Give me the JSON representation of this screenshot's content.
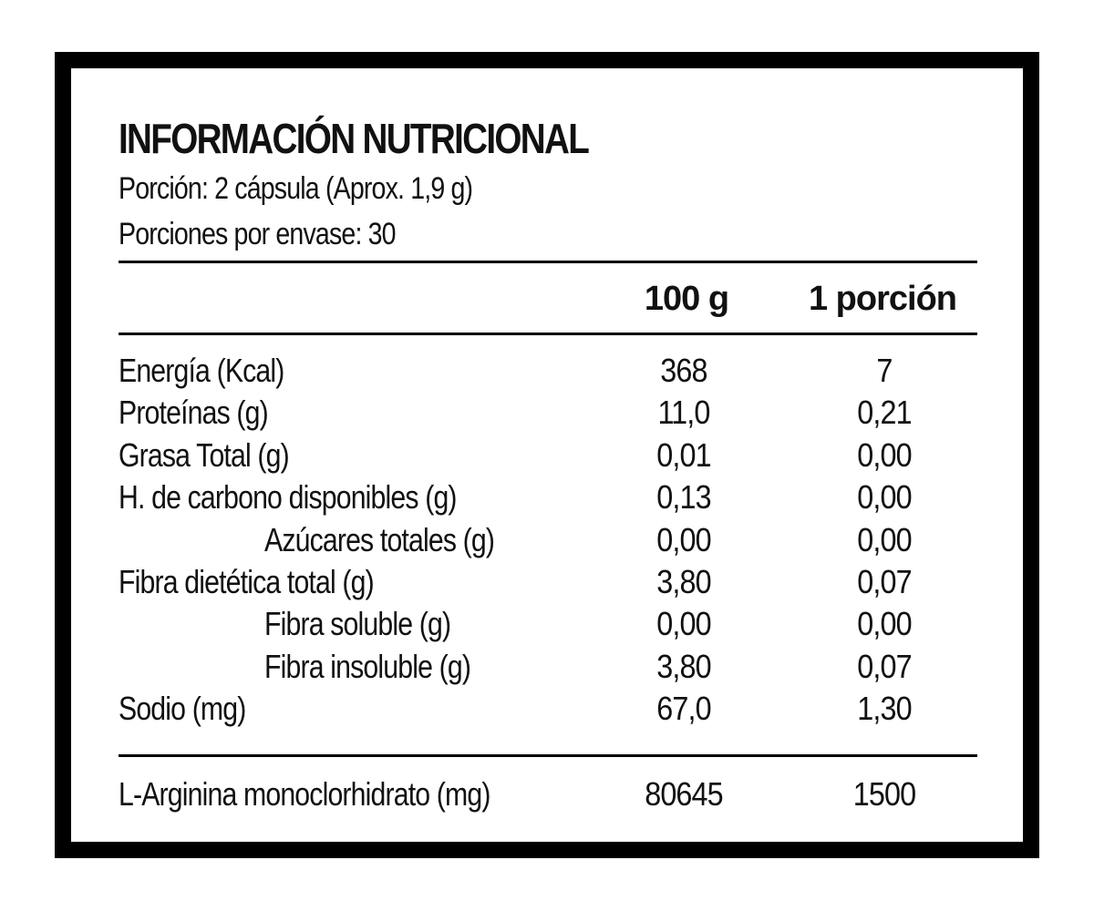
{
  "title": "INFORMACIÓN NUTRICIONAL",
  "serving_size": "Porción: 2 cápsula (Aprox. 1,9 g)",
  "servings_per_container": "Porciones por envase: 30",
  "columns": {
    "per_100g": "100 g",
    "per_portion": "1 porción"
  },
  "rows": [
    {
      "name": "Energía (Kcal)",
      "per_100g": "368",
      "per_portion": "7",
      "indent": false
    },
    {
      "name": "Proteínas (g)",
      "per_100g": "11,0",
      "per_portion": "0,21",
      "indent": false
    },
    {
      "name": "Grasa Total (g)",
      "per_100g": "0,01",
      "per_portion": "0,00",
      "indent": false
    },
    {
      "name": "H. de carbono disponibles (g)",
      "per_100g": "0,13",
      "per_portion": "0,00",
      "indent": false
    },
    {
      "name": "Azúcares totales (g)",
      "per_100g": "0,00",
      "per_portion": "0,00",
      "indent": true
    },
    {
      "name": "Fibra dietética total (g)",
      "per_100g": "3,80",
      "per_portion": "0,07",
      "indent": false
    },
    {
      "name": "Fibra soluble (g)",
      "per_100g": "0,00",
      "per_portion": "0,00",
      "indent": true
    },
    {
      "name": "Fibra insoluble (g)",
      "per_100g": "3,80",
      "per_portion": "0,07",
      "indent": true
    },
    {
      "name": "Sodio (mg)",
      "per_100g": "67,0",
      "per_portion": "1,30",
      "indent": false
    }
  ],
  "footer": {
    "name": "L-Arginina monoclorhidrato (mg)",
    "per_100g": "80645",
    "per_portion": "1500"
  },
  "colors": {
    "border": "#000000",
    "background": "#ffffff",
    "text": "#111111"
  }
}
